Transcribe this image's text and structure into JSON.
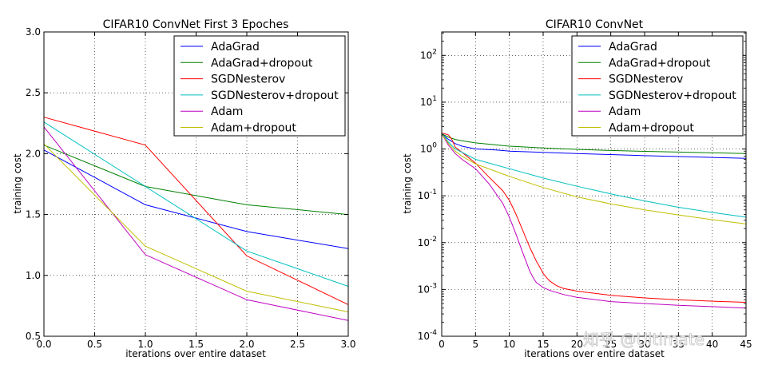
{
  "watermark": "知乎 @Ultimate",
  "chart_data": [
    {
      "type": "line",
      "title": "CIFAR10 ConvNet First 3 Epoches",
      "xlabel": "iterations over entire dataset",
      "ylabel": "training cost",
      "xlim": [
        0,
        3
      ],
      "ylim": [
        0.5,
        3.0
      ],
      "yscale": "linear",
      "grid": true,
      "legend": "top-right",
      "xticks": [
        0,
        0.5,
        1,
        1.5,
        2,
        2.5,
        3
      ],
      "xtick_labels": [
        "0.0",
        "0.5",
        "1.0",
        "1.5",
        "2.0",
        "2.5",
        "3.0"
      ],
      "yticks": [
        0.5,
        1.0,
        1.5,
        2.0,
        2.5,
        3.0
      ],
      "ytick_labels": [
        "0.5",
        "1.0",
        "1.5",
        "2.0",
        "2.5",
        "3.0"
      ],
      "series": [
        {
          "name": "AdaGrad",
          "color": "#0000ff",
          "x": [
            0,
            1,
            2,
            3
          ],
          "y": [
            2.03,
            1.58,
            1.36,
            1.22
          ]
        },
        {
          "name": "AdaGrad+dropout",
          "color": "#008000",
          "x": [
            0,
            1,
            2,
            3
          ],
          "y": [
            2.07,
            1.73,
            1.58,
            1.5
          ]
        },
        {
          "name": "SGDNesterov",
          "color": "#ff0000",
          "x": [
            0,
            1,
            2,
            3
          ],
          "y": [
            2.3,
            2.07,
            1.16,
            0.76
          ]
        },
        {
          "name": "SGDNesterov+dropout",
          "color": "#00bfbf",
          "x": [
            0,
            1,
            2,
            3
          ],
          "y": [
            2.26,
            1.73,
            1.2,
            0.91
          ]
        },
        {
          "name": "Adam",
          "color": "#bf00bf",
          "x": [
            0,
            1,
            2,
            3
          ],
          "y": [
            2.22,
            1.17,
            0.8,
            0.63
          ]
        },
        {
          "name": "Adam+dropout",
          "color": "#bfbf00",
          "x": [
            0,
            1,
            2,
            3
          ],
          "y": [
            2.08,
            1.24,
            0.87,
            0.7
          ]
        }
      ]
    },
    {
      "type": "line",
      "title": "CIFAR10 ConvNet",
      "xlabel": "iterations over entire dataset",
      "ylabel": "training cost",
      "xlim": [
        0,
        45
      ],
      "ylim": [
        0.0001,
        316
      ],
      "yscale": "log",
      "grid": true,
      "legend": "top-right",
      "xticks": [
        0,
        5,
        10,
        15,
        20,
        25,
        30,
        35,
        40,
        45
      ],
      "xtick_labels": [
        "0",
        "5",
        "10",
        "15",
        "20",
        "25",
        "30",
        "35",
        "40",
        "45"
      ],
      "yticks": [
        0.0001,
        0.001,
        0.01,
        0.1,
        1,
        10,
        100
      ],
      "ytick_labels": [
        {
          "base": "10",
          "exp": "-4"
        },
        {
          "base": "10",
          "exp": "-3"
        },
        {
          "base": "10",
          "exp": "-2"
        },
        {
          "base": "10",
          "exp": "-1"
        },
        {
          "base": "10",
          "exp": "0"
        },
        {
          "base": "10",
          "exp": "1"
        },
        {
          "base": "10",
          "exp": "2"
        }
      ],
      "series": [
        {
          "name": "AdaGrad",
          "color": "#0000ff",
          "x": [
            0,
            1,
            2,
            3,
            5,
            8,
            10,
            15,
            20,
            25,
            30,
            35,
            40,
            45
          ],
          "y": [
            2.1,
            1.6,
            1.3,
            1.15,
            1.0,
            0.95,
            0.9,
            0.85,
            0.8,
            0.76,
            0.72,
            0.69,
            0.66,
            0.63
          ]
        },
        {
          "name": "AdaGrad+dropout",
          "color": "#008000",
          "x": [
            0,
            1,
            2,
            3,
            5,
            10,
            15,
            20,
            25,
            30,
            35,
            40,
            45
          ],
          "y": [
            2.1,
            1.8,
            1.6,
            1.5,
            1.35,
            1.15,
            1.05,
            0.98,
            0.93,
            0.89,
            0.86,
            0.83,
            0.8
          ]
        },
        {
          "name": "SGDNesterov",
          "color": "#ff0000",
          "x": [
            0,
            0.5,
            1,
            1.5,
            2,
            3,
            5,
            7,
            9,
            10,
            11,
            12,
            13,
            14,
            14.5,
            15,
            15.5,
            16,
            17,
            18,
            20,
            25,
            30,
            35,
            40,
            45
          ],
          "y": [
            2.2,
            2.1,
            2.0,
            1.6,
            1.1,
            0.85,
            0.5,
            0.25,
            0.13,
            0.08,
            0.04,
            0.018,
            0.008,
            0.004,
            0.003,
            0.0022,
            0.0018,
            0.0015,
            0.0012,
            0.00105,
            0.00092,
            0.00075,
            0.00066,
            0.0006,
            0.00056,
            0.00053
          ]
        },
        {
          "name": "SGDNesterov+dropout",
          "color": "#00bfbf",
          "x": [
            0,
            1,
            2,
            3,
            5,
            10,
            15,
            20,
            25,
            30,
            35,
            40,
            45
          ],
          "y": [
            2.2,
            1.4,
            1.0,
            0.85,
            0.6,
            0.38,
            0.24,
            0.16,
            0.11,
            0.078,
            0.057,
            0.044,
            0.035
          ]
        },
        {
          "name": "Adam",
          "color": "#bf00bf",
          "x": [
            0,
            1,
            2,
            3,
            5,
            7,
            9,
            10,
            11,
            12,
            13,
            13.5,
            14,
            15,
            16,
            18,
            20,
            25,
            30,
            35,
            40,
            45
          ],
          "y": [
            2.1,
            1.2,
            0.8,
            0.6,
            0.38,
            0.18,
            0.07,
            0.035,
            0.015,
            0.006,
            0.0025,
            0.0018,
            0.0014,
            0.0011,
            0.00095,
            0.00078,
            0.00068,
            0.00055,
            0.0005,
            0.00046,
            0.00043,
            0.0004
          ]
        },
        {
          "name": "Adam+dropout",
          "color": "#bfbf00",
          "x": [
            0,
            1,
            2,
            3,
            5,
            10,
            15,
            20,
            25,
            30,
            35,
            40,
            45
          ],
          "y": [
            2.1,
            1.3,
            0.9,
            0.7,
            0.48,
            0.26,
            0.15,
            0.095,
            0.067,
            0.05,
            0.039,
            0.031,
            0.025
          ]
        }
      ]
    }
  ]
}
